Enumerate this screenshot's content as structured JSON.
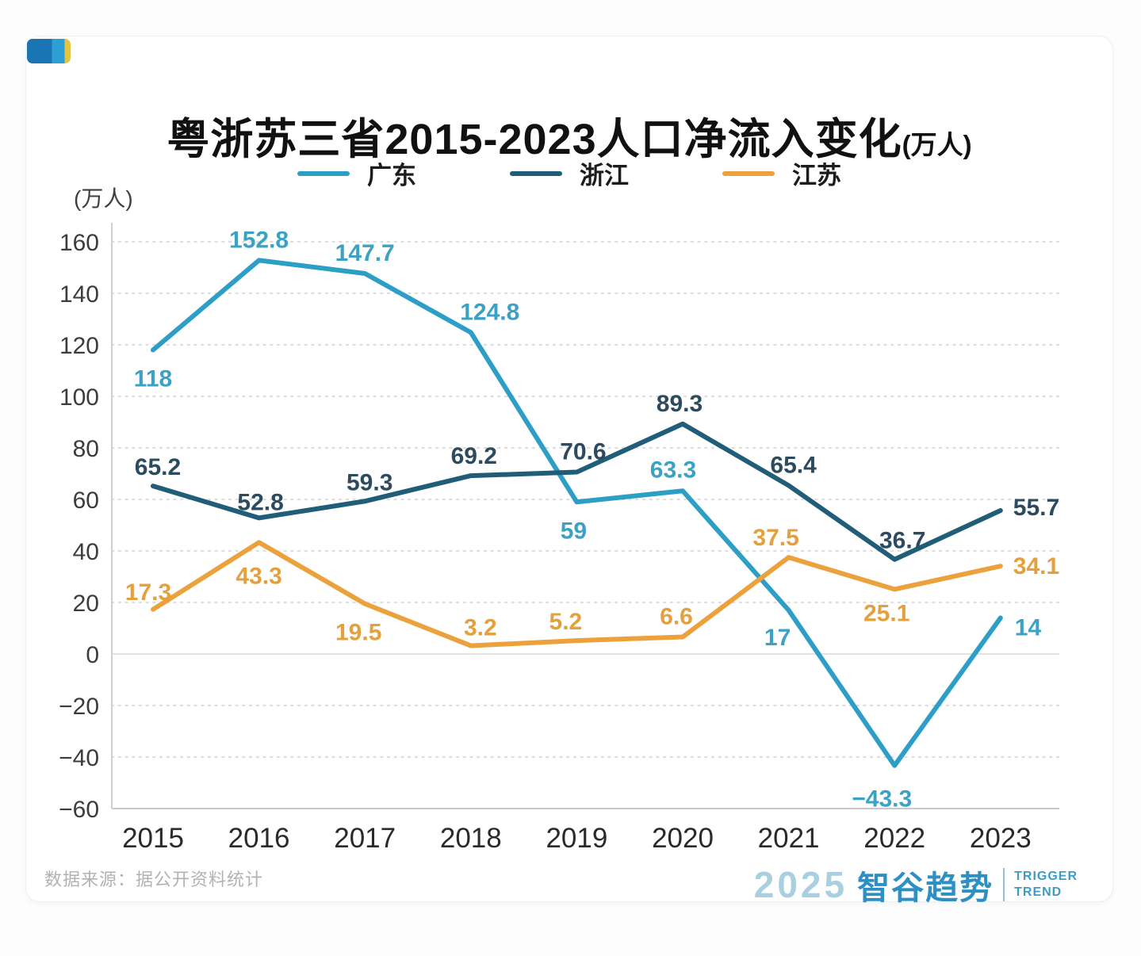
{
  "page": {
    "title": "粤浙苏三省2015-2023人口净流入变化",
    "title_suffix": "(万人)",
    "unit_label": "(万人)",
    "source": "数据来源：据公开资料统计",
    "logo": {
      "year": "2025",
      "brand": "智谷趋势",
      "tagline_line1": "TRIGGER",
      "tagline_line2": "TREND"
    }
  },
  "chart_data": {
    "type": "line",
    "title": "粤浙苏三省2015-2023人口净流入变化(万人)",
    "unit": "万人",
    "categories": [
      2015,
      2016,
      2017,
      2018,
      2019,
      2020,
      2021,
      2022,
      2023
    ],
    "series": [
      {
        "name": "广东",
        "color": "#2d9ec6",
        "label_color": "#3ba2c6",
        "values": [
          118,
          152.8,
          147.7,
          124.8,
          59,
          63.3,
          17,
          -43.3,
          14
        ]
      },
      {
        "name": "浙江",
        "color": "#1f5d78",
        "label_color": "#2c4b5e",
        "values": [
          65.2,
          52.8,
          59.3,
          69.2,
          70.6,
          89.3,
          65.4,
          36.7,
          55.7
        ]
      },
      {
        "name": "江苏",
        "color": "#eca23c",
        "label_color": "#e3a03c",
        "values": [
          17.3,
          43.3,
          19.5,
          3.2,
          5.2,
          6.6,
          37.5,
          25.1,
          34.1
        ]
      }
    ],
    "ylim": [
      -60,
      160
    ],
    "ytick_step": 20,
    "yticks": [
      160,
      140,
      120,
      100,
      80,
      60,
      40,
      20,
      0,
      -20,
      -40,
      -60
    ],
    "grid": "horizontal-dotted, solid zero line, solid bottom axis, left axis line",
    "legend_position": "top-center",
    "data_labels": "shown at every point"
  }
}
